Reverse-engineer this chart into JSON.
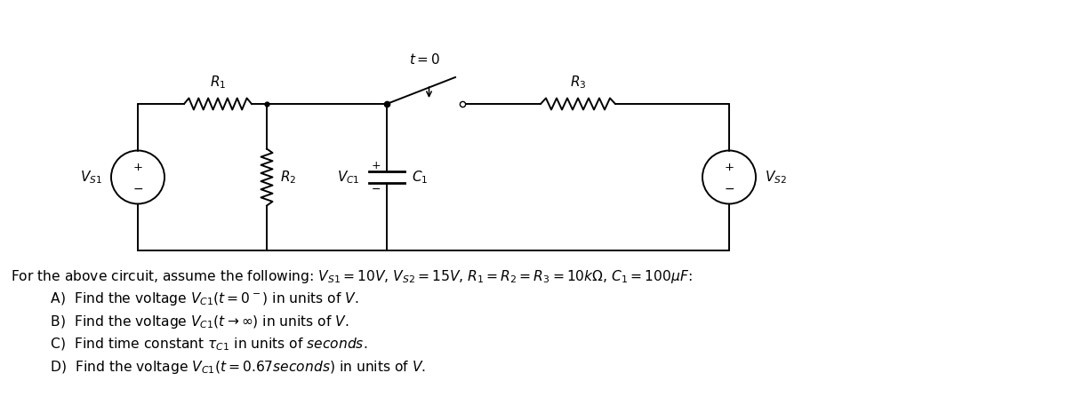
{
  "background_color": "#ffffff",
  "circuit": {
    "vs1_label": "$V_{S1}$",
    "vs2_label": "$V_{S2}$",
    "r1_label": "$R_1$",
    "r2_label": "$R_2$",
    "r3_label": "$R_3$",
    "vc1_label": "$V_{C1}$",
    "c1_label": "$C_1$",
    "t0_label": "$t = 0$"
  },
  "problem_text_line0": "For the above circuit, assume the following: $V_{S1} = 10V$, $V_{S2} = 15V$, $R_1 = R_2 = R_3 = 10k\\Omega$, $C_1 = 100\\mu F$:",
  "problem_text_lineA": "   A)  Find the voltage $V_{C1}(t = 0^-)$ in units of $V$.",
  "problem_text_lineB": "   B)  Find the voltage $V_{C1}(t \\rightarrow \\infty)$ in units of $V$.",
  "problem_text_lineC": "   C)  Find time constant $\\tau_{C1}$ in units of $seconds$.",
  "problem_text_lineD": "   D)  Find the voltage $V_{C1}(t = 0.67 seconds)$ in units of $V$."
}
